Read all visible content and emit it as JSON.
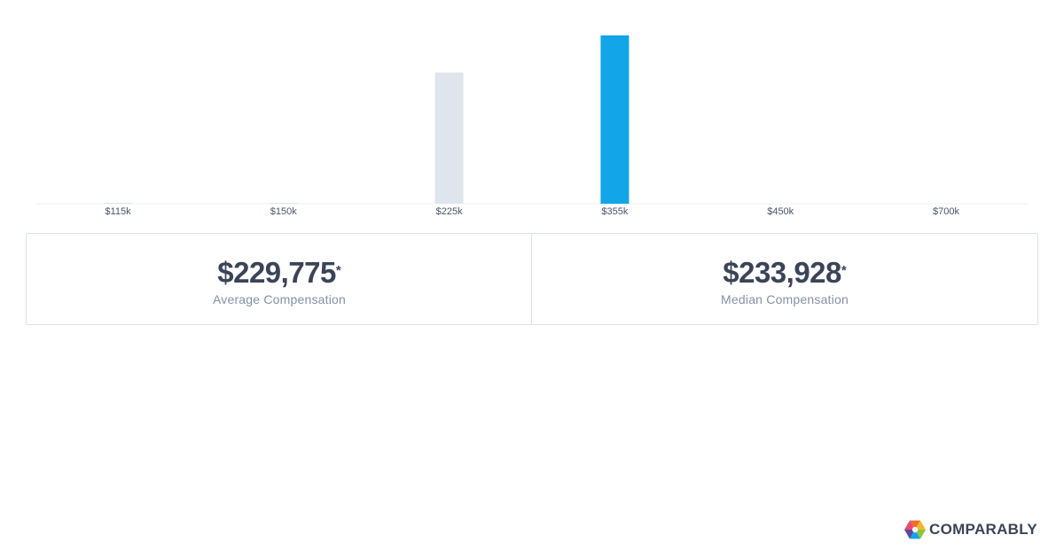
{
  "chart_data": {
    "type": "bar",
    "categories": [
      "$115k",
      "$150k",
      "$225k",
      "$355k",
      "$450k",
      "$700k"
    ],
    "values": [
      0.5,
      0.5,
      78,
      100,
      0,
      0
    ],
    "highlight_index": 3,
    "bar_color": "#dfe5ec",
    "highlight_color": "#12a5e8",
    "ylim": [
      0,
      100
    ],
    "grid": false,
    "legend": "none"
  },
  "stats": {
    "average": {
      "value": "$229,775",
      "asterisk": "*",
      "label": "Average Compensation"
    },
    "median": {
      "value": "$233,928",
      "asterisk": "*",
      "label": "Median Compensation"
    }
  },
  "brand": {
    "name": "COMPARABLY",
    "logo_icon": "comparably-logo-icon",
    "logo_colors": [
      "#f06c2a",
      "#f8b62d",
      "#8cc63f",
      "#12a5e8",
      "#5b4a9e",
      "#e94b6f"
    ]
  },
  "colors": {
    "text_dark": "#3b4457",
    "text_muted": "#8392a5",
    "border": "#dde1e6"
  }
}
